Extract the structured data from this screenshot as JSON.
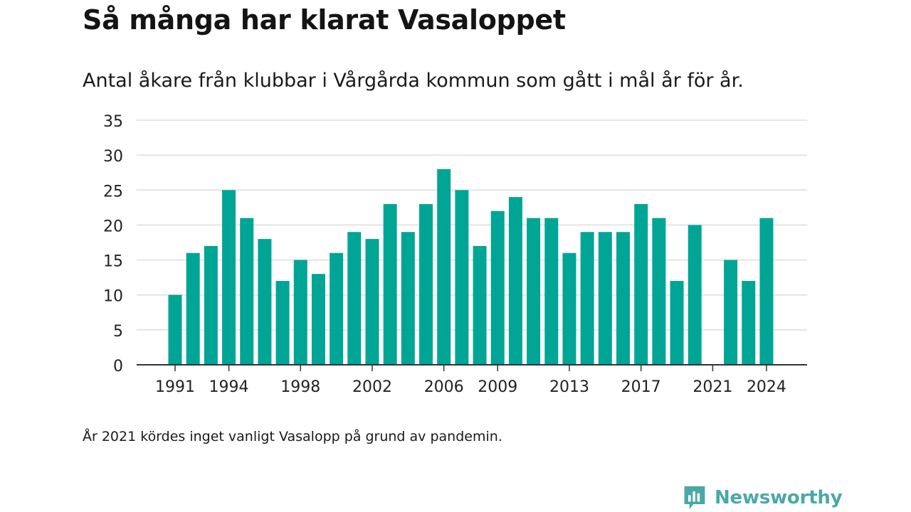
{
  "title": "Så många har klarat Vasaloppet",
  "subtitle": "Antal åkare från klubbar i Vårgårda kommun som gått i mål år för år.",
  "footnote": "År 2021 kördes inget vanligt Vasalopp på grund av pandemin.",
  "brand": "Newsworthy",
  "colors": {
    "bar": "#00a596",
    "grid": "#dddddd",
    "axis": "#333333",
    "brand": "#4aa9a6"
  },
  "chart_data": {
    "type": "bar",
    "title": "Så många har klarat Vasaloppet",
    "subtitle": "Antal åkare från klubbar i Vårgårda kommun som gått i mål år för år.",
    "xlabel": "",
    "ylabel": "",
    "ylim": [
      0,
      35
    ],
    "yticks": [
      0,
      5,
      10,
      15,
      20,
      25,
      30,
      35
    ],
    "grid": true,
    "categories": [
      1991,
      1992,
      1993,
      1994,
      1995,
      1996,
      1997,
      1998,
      1999,
      2000,
      2001,
      2002,
      2003,
      2004,
      2005,
      2006,
      2007,
      2008,
      2009,
      2010,
      2011,
      2012,
      2013,
      2014,
      2015,
      2016,
      2017,
      2018,
      2019,
      2020,
      2021,
      2022,
      2023,
      2024
    ],
    "values": [
      10,
      16,
      17,
      25,
      21,
      18,
      12,
      15,
      13,
      16,
      19,
      18,
      23,
      19,
      23,
      28,
      25,
      17,
      22,
      24,
      21,
      21,
      16,
      19,
      19,
      19,
      23,
      21,
      12,
      20,
      null,
      15,
      12,
      21
    ],
    "xtick_labels": [
      "1991",
      "1994",
      "1998",
      "2002",
      "2006",
      "2009",
      "2013",
      "2017",
      "2021",
      "2024"
    ]
  }
}
